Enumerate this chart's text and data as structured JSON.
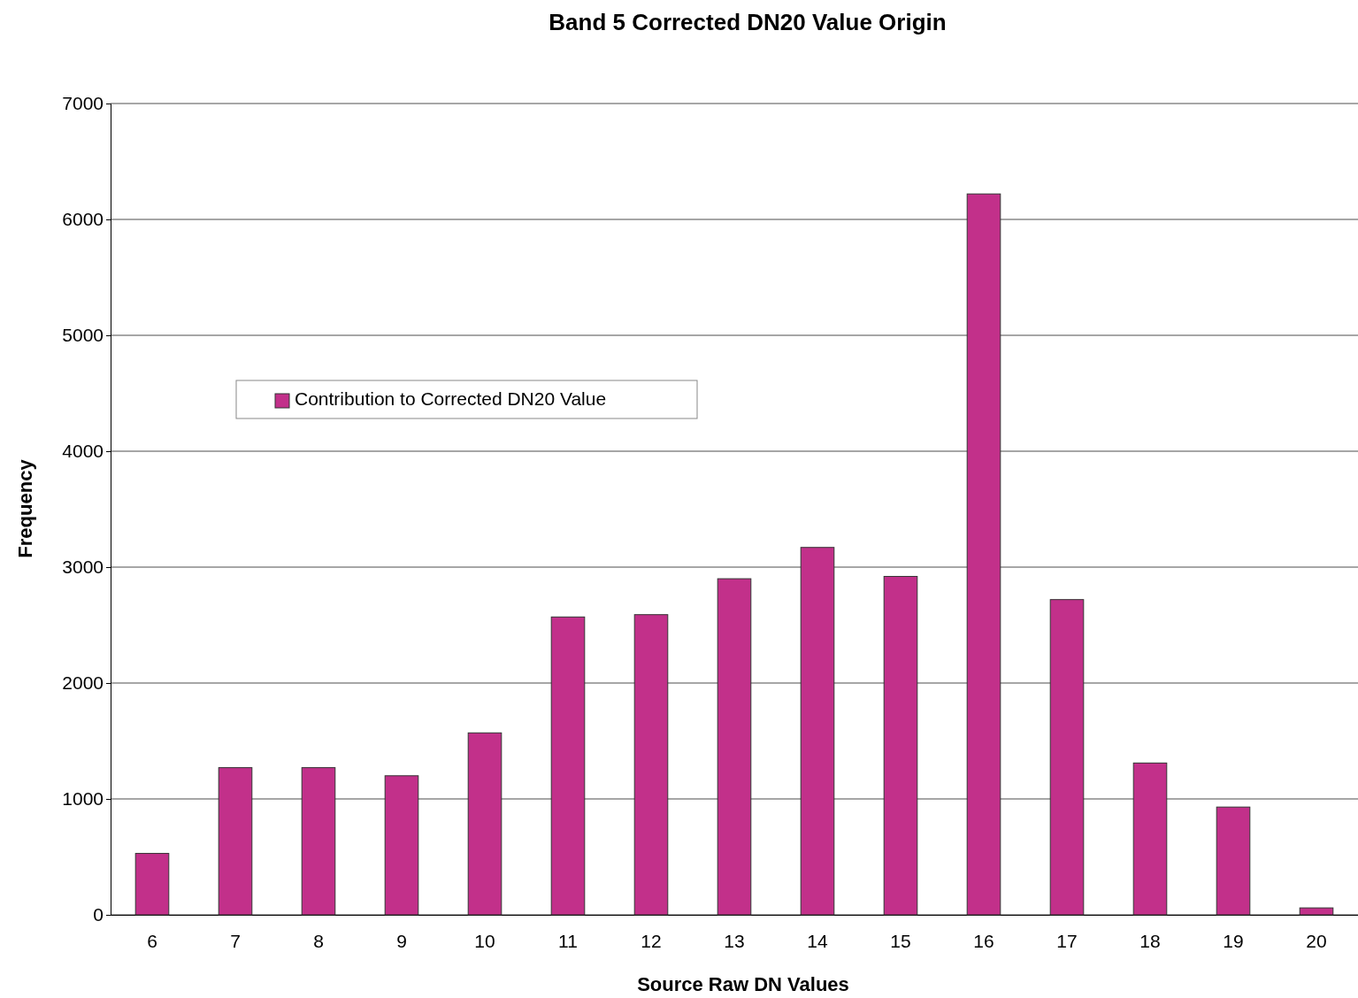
{
  "chart_data": {
    "type": "bar",
    "title": "Band 5 Corrected DN20 Value Origin",
    "xlabel": "Source Raw DN Values",
    "ylabel": "Frequency",
    "categories": [
      "6",
      "7",
      "8",
      "9",
      "10",
      "11",
      "12",
      "13",
      "14",
      "15",
      "16",
      "17",
      "18",
      "19",
      "20"
    ],
    "series": [
      {
        "name": "Contribution to Corrected DN20 Value",
        "color": "#c2308a",
        "values": [
          530,
          1270,
          1270,
          1200,
          1570,
          2570,
          2590,
          2900,
          3170,
          2920,
          6220,
          2720,
          1310,
          930,
          60
        ]
      }
    ],
    "ylim": [
      0,
      7000
    ],
    "yticks": [
      0,
      1000,
      2000,
      3000,
      4000,
      5000,
      6000,
      7000
    ],
    "grid": "y",
    "legend": "top left"
  }
}
